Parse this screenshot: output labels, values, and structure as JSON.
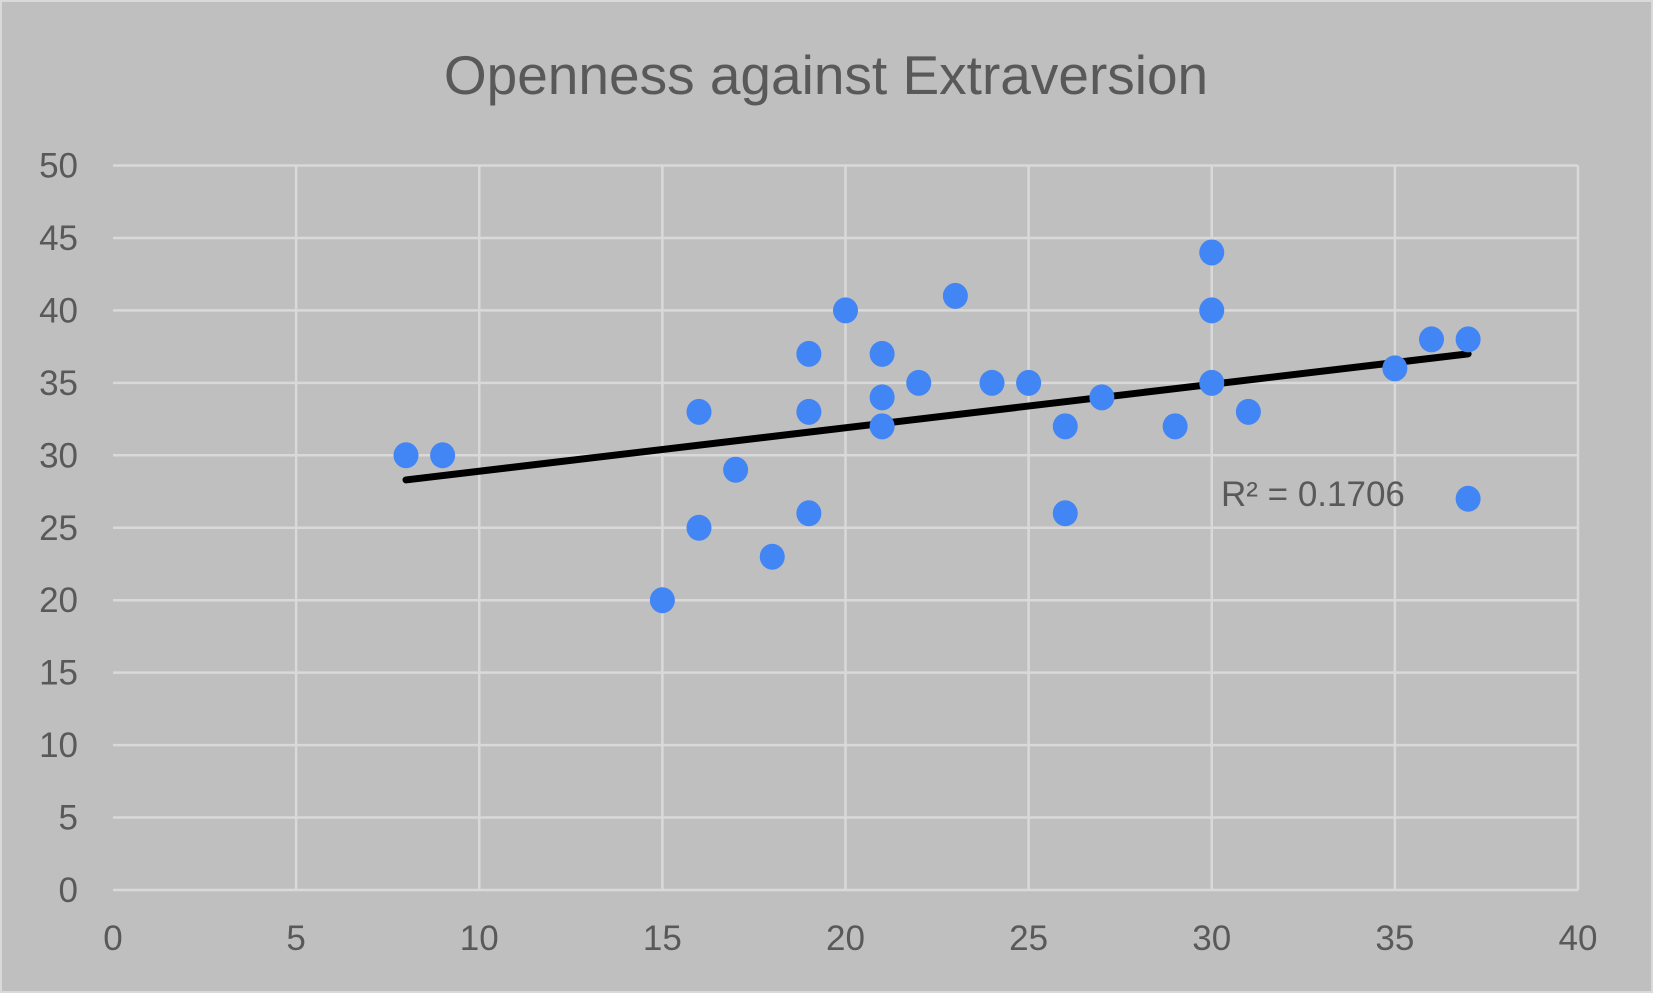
{
  "chart_data": {
    "type": "scatter",
    "title": "Openness against Extraversion",
    "xlabel": "",
    "ylabel": "",
    "xlim": [
      0,
      40
    ],
    "ylim": [
      0,
      50
    ],
    "x_ticks": [
      "0",
      "5",
      "10",
      "15",
      "20",
      "25",
      "30",
      "35",
      "40"
    ],
    "y_ticks": [
      "0",
      "5",
      "10",
      "15",
      "20",
      "25",
      "30",
      "35",
      "40",
      "45",
      "50"
    ],
    "grid": true,
    "legend": "none",
    "points": [
      [
        8,
        30
      ],
      [
        9,
        30
      ],
      [
        15,
        20
      ],
      [
        16,
        33
      ],
      [
        16,
        25
      ],
      [
        17,
        29
      ],
      [
        18,
        23
      ],
      [
        19,
        37
      ],
      [
        19,
        33
      ],
      [
        19,
        26
      ],
      [
        20,
        40
      ],
      [
        21,
        37
      ],
      [
        21,
        34
      ],
      [
        21,
        32
      ],
      [
        22,
        35
      ],
      [
        23,
        41
      ],
      [
        24,
        35
      ],
      [
        25,
        35
      ],
      [
        26,
        32
      ],
      [
        26,
        26
      ],
      [
        27,
        34
      ],
      [
        29,
        32
      ],
      [
        30,
        44
      ],
      [
        30,
        40
      ],
      [
        30,
        35
      ],
      [
        31,
        33
      ],
      [
        35,
        36
      ],
      [
        36,
        38
      ],
      [
        37,
        38
      ],
      [
        37,
        27
      ]
    ],
    "trendline": {
      "type": "linear",
      "x_range": [
        8,
        37
      ],
      "y_at_start": 28.3,
      "y_at_end": 37.0
    },
    "r_squared_label": "R² = 0.1706",
    "colors": {
      "point": "#4285f4",
      "trendline": "#000000",
      "background": "#bfbfbf",
      "grid": "#d9d9d9",
      "text": "#595959"
    }
  }
}
